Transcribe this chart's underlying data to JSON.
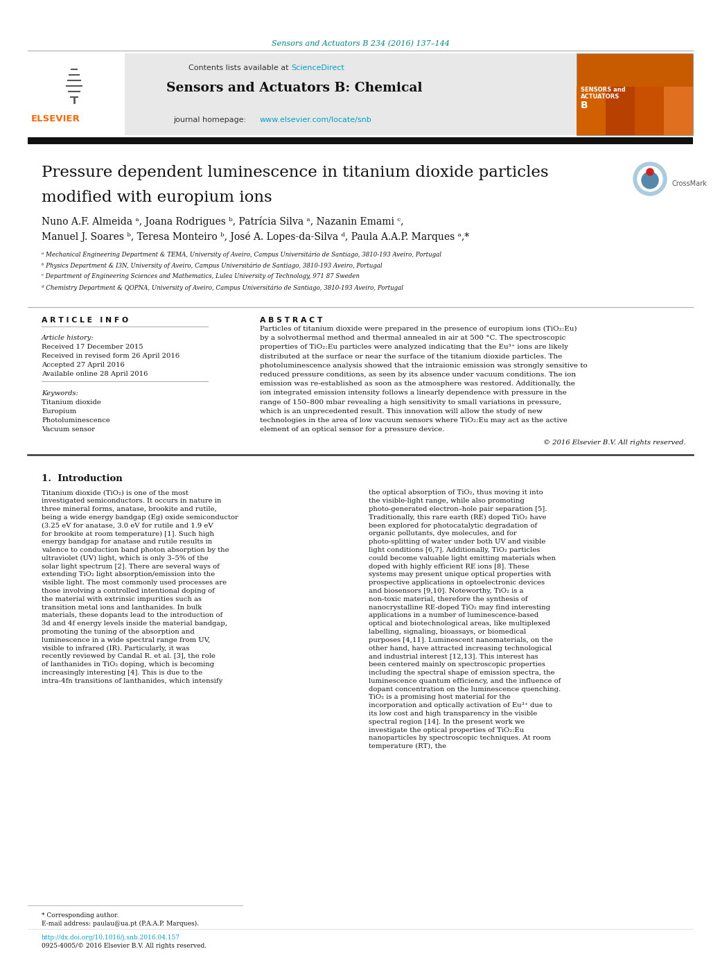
{
  "bg_color": "#ffffff",
  "top_citation": "Sensors and Actuators B 234 (2016) 137–144",
  "top_citation_color": "#008080",
  "sciencedirect_color": "#00a0c6",
  "journal_name": "Sensors and Actuators B: Chemical",
  "journal_url": "www.elsevier.com/locate/snb",
  "journal_url_color": "#00a0c6",
  "header_bg": "#e8e8e8",
  "title_line1": "Pressure dependent luminescence in titanium dioxide particles",
  "title_line2": "modified with europium ions",
  "authors": "Nuno A.F. Almeida ᵃ, Joana Rodrigues ᵇ, Patrícia Silva ᵃ, Nazanin Emami ᶜ,",
  "authors2": "Manuel J. Soares ᵇ, Teresa Monteiro ᵇ, José A. Lopes-da-Silva ᵈ, Paula A.A.P. Marques ᵃ,*",
  "affil_a": "ᵃ Mechanical Engineering Department & TEMA, University of Aveiro, Campus Universitário de Santiago, 3810-193 Aveiro, Portugal",
  "affil_b": "ᵇ Physics Department & I3N, University of Aveiro, Campus Universitário de Santiago, 3810-193 Aveiro, Portugal",
  "affil_c": "ᶜ Department of Engineering Sciences and Mathematics, Lulea University of Technology, 971 87 Sweden",
  "affil_d": "ᵈ Chemistry Department & QOPNA, University of Aveiro, Campus Universitário de Santiago, 3810-193 Aveiro, Portugal",
  "article_info_header": "A R T I C L E   I N F O",
  "abstract_header": "A B S T R A C T",
  "article_history_label": "Article history:",
  "received1": "Received 17 December 2015",
  "received2": "Received in revised form 26 April 2016",
  "accepted": "Accepted 27 April 2016",
  "available": "Available online 28 April 2016",
  "keywords_label": "Keywords:",
  "keywords": [
    "Titanium dioxide",
    "Europium",
    "Photoluminescence",
    "Vacuum sensor"
  ],
  "abstract_text": "Particles of titanium dioxide were prepared in the presence of europium ions (TiO₂:Eu) by a solvothermal method and thermal annealed in air at 500 °C. The spectroscopic properties of TiO₂:Eu particles were analyzed indicating that the Eu³⁺ ions are likely distributed at the surface or near the surface of the titanium dioxide particles. The photoluminescence analysis showed that the intraionic emission was strongly sensitive to reduced pressure conditions, as seen by its absence under vacuum conditions. The ion emission was re-established as soon as the atmosphere was restored. Additionally, the ion integrated emission intensity follows a linearly dependence with pressure in the range of 150–800 mbar revealing a high sensitivity to small variations in pressure, which is an unprecedented result. This innovation will allow the study of new technologies in the area of low vacuum sensors where TiO₂:Eu may act as the active element of an optical sensor for a pressure device.",
  "copyright": "© 2016 Elsevier B.V. All rights reserved.",
  "section1_title": "1.  Introduction",
  "intro_col1": "    Titanium dioxide (TiO₂) is one of the most investigated semiconductors. It occurs in nature in three mineral forms, anatase, brookite and rutile, being a wide energy bandgap (Eg) oxide semiconductor (3.25 eV for anatase, 3.0 eV for rutile and 1.9 eV for brookite at room temperature) [1]. Such high energy bandgap for anatase and rutile results in valence to conduction band photon absorption by the ultraviolet (UV) light, which is only 3–5% of the solar light spectrum [2]. There are several ways of extending TiO₂ light absorption/emission into the visible light. The most commonly used processes are those involving a controlled intentional doping of the material with extrinsic impurities such as transition metal ions and lanthanides. In bulk materials, these dopants lead to the introduction of 3d and 4f energy levels inside the material bandgap, promoting the tuning of the absorption and luminescence in a wide spectral range from UV, visible to infrared (IR). Particularly, it was recently reviewed by Candal R. et al. [3], the role of lanthanides in TiO₂ doping, which is becoming increasingly interesting [4]. This is due to the intra-4fn transitions of lanthanides, which intensify",
  "intro_col2": "the optical absorption of TiO₂, thus moving it into the visible-light range, while also promoting photo-generated electron–hole pair separation [5]. Traditionally, this rare earth (RE) doped TiO₂ have been explored for photocatalytic degradation of organic pollutants, dye molecules, and for photo-splitting of water under both UV and visible light conditions [6,7]. Additionally, TiO₂ particles could become valuable light emitting materials when doped with highly efficient RE ions [8]. These systems may present unique optical properties with prospective applications in optoelectronic devices and biosensors [9,10]. Noteworthy, TiO₂ is a non-toxic material, therefore the synthesis of nanocrystalline RE-doped TiO₂ may find interesting applications in a number of luminescence-based optical and biotechnological areas, like multiplexed labelling, signaling, bioassays, or biomedical purposes [4,11].\n    Luminescent nanomaterials, on the other hand, have attracted increasing technological and industrial interest [12,13]. This interest has been centered mainly on spectroscopic properties including the spectral shape of emission spectra, the luminescence quantum efficiency, and the influence of dopant concentration on the luminescence quenching. TiO₂ is a promising host material for the incorporation and optically activation of Eu³⁺ due to its low cost and high transparency in the visible spectral region [14]. In the present work we investigate the optical properties of TiO₂:Eu nanoparticles by spectroscopic techniques. At room temperature (RT), the",
  "footnote_corresponding": "* Corresponding author.",
  "footnote_email": "E-mail address: paulau@ua.pt (P.A.A.P. Marques).",
  "footnote_doi": "http://dx.doi.org/10.1016/j.snb.2016.04.157",
  "footnote_issn": "0925-4005/© 2016 Elsevier B.V. All rights reserved."
}
